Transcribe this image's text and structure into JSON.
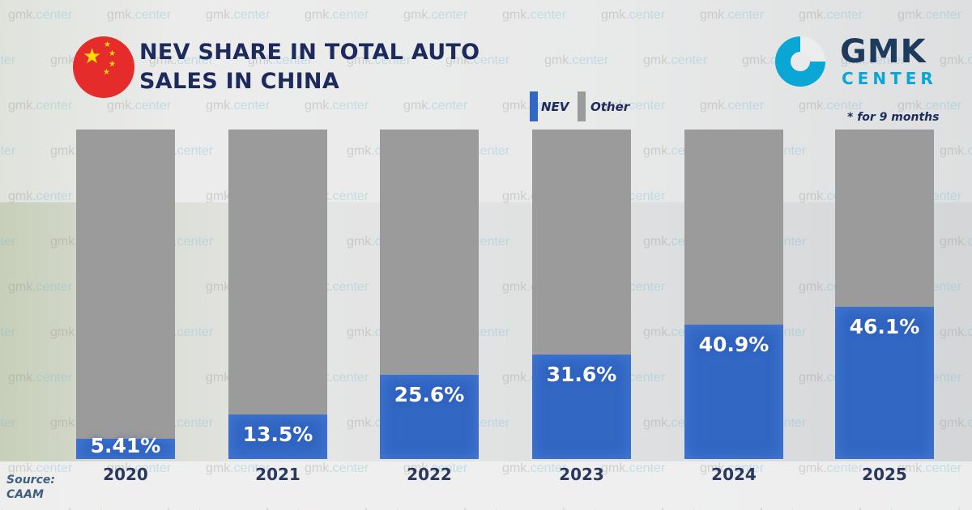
{
  "title_line1": "NEV SHARE IN TOTAL AUTO",
  "title_line2": "SALES IN CHINA",
  "logo": {
    "line1": "GMK",
    "line2": "CENTER"
  },
  "watermark": "gmk.center",
  "note": "* for 9 months",
  "source_line1": "Source:",
  "source_line2": "CAAM",
  "colors": {
    "nev": "#3267c4",
    "other": "#9b9b9b",
    "title": "#1d2b5c",
    "brand": "#0aa6d6"
  },
  "chart_data": {
    "type": "bar",
    "stacked": true,
    "ylim": [
      0,
      100
    ],
    "categories": [
      "2020",
      "2021",
      "2022",
      "2023",
      "2024",
      "2025"
    ],
    "series": [
      {
        "name": "NEV",
        "values": [
          5.41,
          13.5,
          25.6,
          31.6,
          40.9,
          46.1
        ]
      },
      {
        "name": "Other",
        "values": [
          94.59,
          86.5,
          74.4,
          68.4,
          59.1,
          53.9
        ]
      }
    ],
    "data_labels": [
      "5.41%",
      "13.5%",
      "25.6%",
      "31.6%",
      "40.9%",
      "46.1%"
    ],
    "legend": {
      "position": "top",
      "entries": [
        "NEV",
        "Other"
      ]
    }
  }
}
